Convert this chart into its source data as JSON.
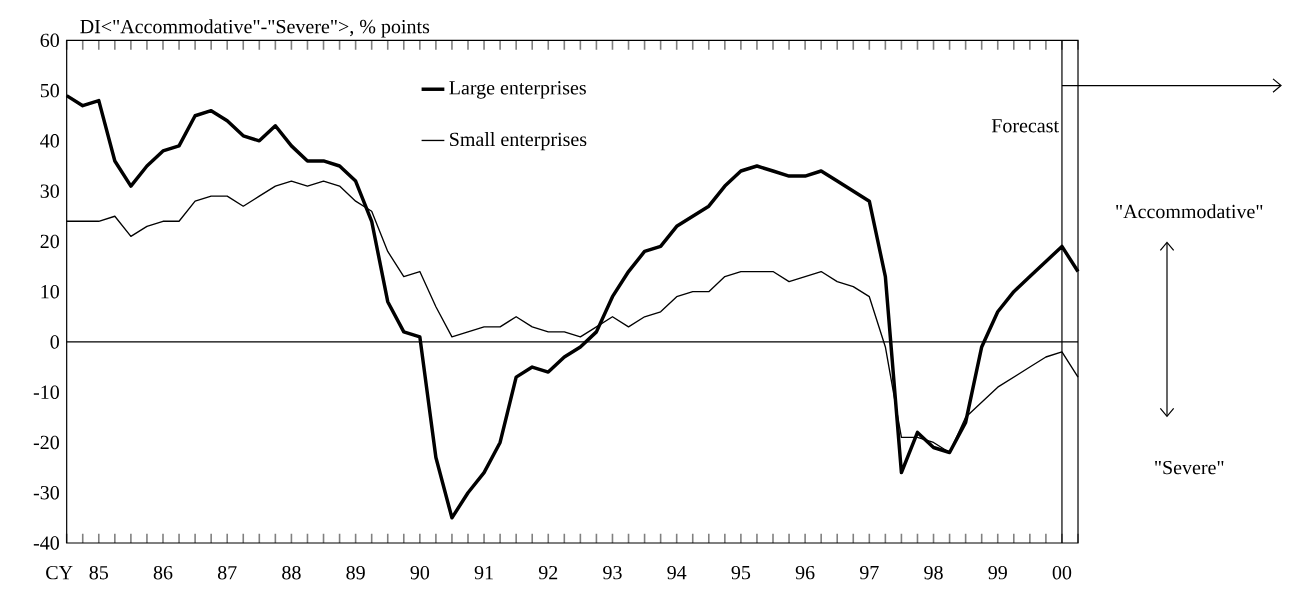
{
  "chart_data": {
    "type": "line",
    "ylabel": "DI<\"Accommodative\"-\"Severe\">,  % points",
    "xlabel": "CY",
    "categories": [
      null,
      null,
      "85",
      null,
      null,
      null,
      "86",
      null,
      null,
      null,
      "87",
      null,
      null,
      null,
      "88",
      null,
      null,
      null,
      "89",
      null,
      null,
      null,
      "90",
      null,
      null,
      null,
      "91",
      null,
      null,
      null,
      "92",
      null,
      null,
      null,
      "93",
      null,
      null,
      null,
      "94",
      null,
      null,
      null,
      "95",
      null,
      null,
      null,
      "96",
      null,
      null,
      null,
      "97",
      null,
      null,
      null,
      "98",
      null,
      null,
      null,
      "99",
      null,
      null,
      null,
      "00",
      null
    ],
    "series": [
      {
        "name": "Large enterprises",
        "color": "#000000",
        "values": [
          49,
          47,
          48,
          36,
          31,
          35,
          38,
          39,
          45,
          46,
          44,
          41,
          40,
          43,
          39,
          36,
          36,
          35,
          32,
          24,
          8,
          2,
          1,
          -23,
          -35,
          -30,
          -26,
          -20,
          -7,
          -5,
          -6,
          -3,
          -1,
          2,
          9,
          14,
          18,
          19,
          23,
          25,
          27,
          31,
          34,
          35,
          34,
          33,
          33,
          34,
          32,
          30,
          28,
          13,
          -26,
          -18,
          -21,
          -22,
          -16,
          -1,
          6,
          10,
          13,
          16,
          19,
          14
        ]
      },
      {
        "name": "Small enterprises",
        "color": "#000000",
        "values": [
          24,
          24,
          24,
          25,
          21,
          23,
          24,
          24,
          28,
          29,
          29,
          27,
          29,
          31,
          32,
          31,
          32,
          31,
          28,
          26,
          18,
          13,
          14,
          7,
          1,
          2,
          3,
          3,
          5,
          3,
          2,
          2,
          1,
          3,
          5,
          3,
          5,
          6,
          9,
          10,
          10,
          13,
          14,
          14,
          14,
          12,
          13,
          14,
          12,
          11,
          9,
          -1,
          -19,
          -19,
          -20,
          -22,
          -15,
          -12,
          -9,
          -7,
          -5,
          -3,
          -2,
          -7
        ]
      }
    ],
    "ylim": [
      -40,
      60
    ],
    "yticks": [
      -40,
      -30,
      -20,
      -10,
      0,
      10,
      20,
      30,
      40,
      50,
      60
    ],
    "ref_lines": [
      {
        "axis": "y",
        "value": 0,
        "color": "#000000"
      },
      {
        "axis": "x",
        "value": "00",
        "label": "Forecast",
        "color": "#000000"
      }
    ],
    "annotations": [
      "\"Accommodative\"",
      "\"Severe\""
    ],
    "legend": "top",
    "grid": false,
    "marker": "none",
    "line_style": "solid"
  }
}
